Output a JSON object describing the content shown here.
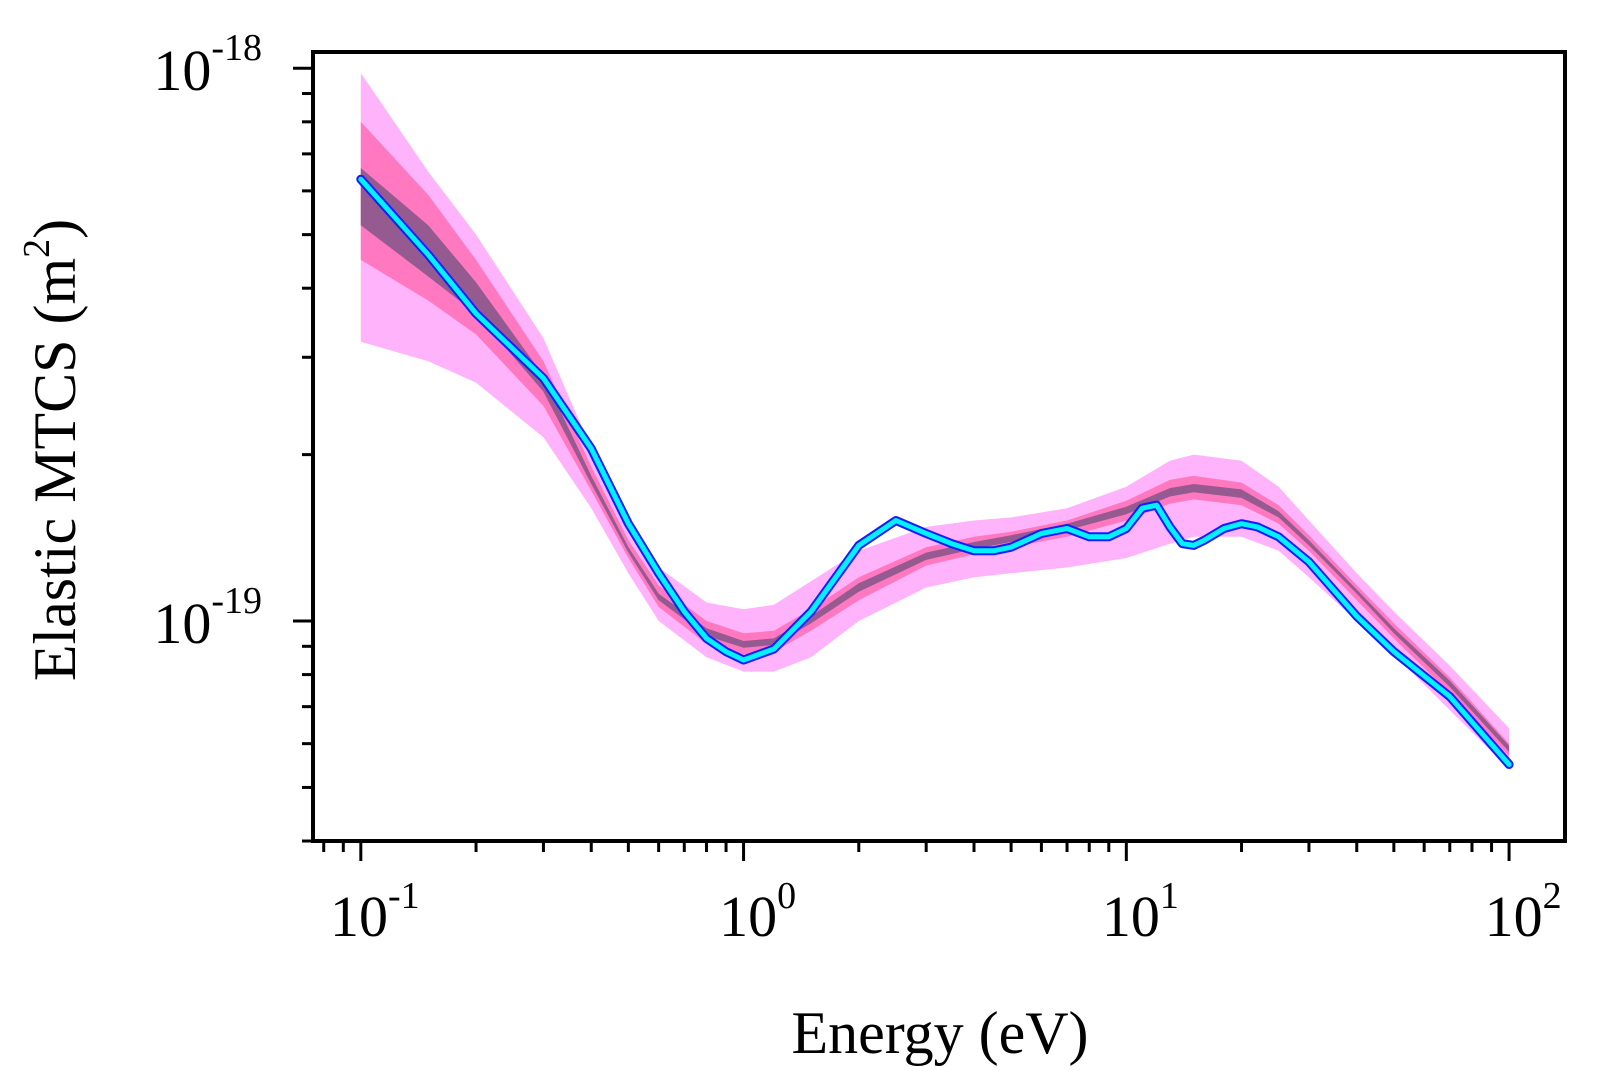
{
  "chart_data": {
    "type": "line",
    "title": "",
    "xlabel": "Energy (eV)",
    "ylabel_main": "Elastic MTCS (m",
    "ylabel_sup": "2",
    "ylabel_close": ")",
    "xscale": "log",
    "yscale": "log",
    "xlim": [
      0.075,
      140
    ],
    "ylim": [
      4e-20,
      1.07e-18
    ],
    "x_major_ticks": [
      {
        "value": 0.1,
        "base": "10",
        "exp": "-1"
      },
      {
        "value": 1,
        "base": "10",
        "exp": "0"
      },
      {
        "value": 10,
        "base": "10",
        "exp": "1"
      },
      {
        "value": 100,
        "base": "10",
        "exp": "2"
      }
    ],
    "y_major_ticks": [
      {
        "value": 1e-19,
        "base": "10",
        "exp": "-19"
      },
      {
        "value": 1e-18,
        "base": "10",
        "exp": "-18"
      }
    ],
    "x_minor_ticks": [
      0.08,
      0.09,
      0.2,
      0.3,
      0.4,
      0.5,
      0.6,
      0.7,
      0.8,
      0.9,
      2,
      3,
      4,
      5,
      6,
      7,
      8,
      9,
      20,
      30,
      40,
      50,
      60,
      70,
      80,
      90
    ],
    "y_minor_ticks": [
      4e-20,
      5e-20,
      6e-20,
      7e-20,
      8e-20,
      9e-20,
      2e-19,
      3e-19,
      4e-19,
      5e-19,
      6e-19,
      7e-19,
      8e-19,
      9e-19
    ],
    "colors": {
      "band_outer": "#ffb3fb",
      "band_middle": "#ff78c0",
      "band_inner": "#955a8f",
      "line_outline": "#1a1aff",
      "line": "#00f2ff"
    },
    "band_x": [
      0.1,
      0.15,
      0.2,
      0.3,
      0.4,
      0.5,
      0.6,
      0.8,
      1.0,
      1.2,
      1.5,
      2,
      3,
      4,
      5,
      7,
      10,
      13,
      15,
      20,
      25,
      30,
      40,
      50,
      70,
      100
    ],
    "band_outer": {
      "upper": [
        9.8e-19,
        6.5e-19,
        5e-19,
        3.25e-19,
        2.05e-19,
        1.5e-19,
        1.25e-19,
        1.08e-19,
        1.05e-19,
        1.07e-19,
        1.18e-19,
        1.34e-19,
        1.48e-19,
        1.52e-19,
        1.54e-19,
        1.6e-19,
        1.75e-19,
        1.95e-19,
        2e-19,
        1.95e-19,
        1.75e-19,
        1.52e-19,
        1.22e-19,
        1.04e-19,
        8.3e-20,
        6.4e-20
      ],
      "lower": [
        3.2e-19,
        2.95e-19,
        2.7e-19,
        2.15e-19,
        1.6e-19,
        1.22e-19,
        1e-19,
        8.6e-20,
        8.1e-20,
        8.1e-20,
        8.6e-20,
        1e-19,
        1.15e-19,
        1.2e-19,
        1.22e-19,
        1.25e-19,
        1.3e-19,
        1.38e-19,
        1.42e-19,
        1.42e-19,
        1.34e-19,
        1.2e-19,
        1e-19,
        8.7e-20,
        6.9e-20,
        5.4e-20
      ]
    },
    "band_middle": {
      "upper": [
        8e-19,
        5.9e-19,
        4.5e-19,
        2.95e-19,
        1.9e-19,
        1.4e-19,
        1.16e-19,
        1e-19,
        9.5e-20,
        9.6e-20,
        1.05e-19,
        1.2e-19,
        1.36e-19,
        1.42e-19,
        1.45e-19,
        1.52e-19,
        1.65e-19,
        1.8e-19,
        1.83e-19,
        1.78e-19,
        1.62e-19,
        1.43e-19,
        1.16e-19,
        9.9e-20,
        7.9e-20,
        6e-20
      ],
      "lower": [
        4.5e-19,
        3.8e-19,
        3.3e-19,
        2.45e-19,
        1.72e-19,
        1.3e-19,
        1.06e-19,
        9.1e-20,
        8.7e-20,
        8.8e-20,
        9.6e-20,
        1.09e-19,
        1.26e-19,
        1.32e-19,
        1.36e-19,
        1.42e-19,
        1.52e-19,
        1.63e-19,
        1.66e-19,
        1.62e-19,
        1.5e-19,
        1.34e-19,
        1.09e-19,
        9.3e-20,
        7.4e-20,
        5.7e-20
      ]
    },
    "band_inner": {
      "upper": [
        6.6e-19,
        5.2e-19,
        4.1e-19,
        2.78e-19,
        1.83e-19,
        1.36e-19,
        1.12e-19,
        9.7e-20,
        9.2e-20,
        9.3e-20,
        1.02e-19,
        1.17e-19,
        1.33e-19,
        1.39e-19,
        1.43e-19,
        1.5e-19,
        1.61e-19,
        1.74e-19,
        1.77e-19,
        1.73e-19,
        1.58e-19,
        1.4e-19,
        1.14e-19,
        9.7e-20,
        7.8e-20,
        5.95e-20
      ],
      "lower": [
        5.2e-19,
        4.2e-19,
        3.6e-19,
        2.6e-19,
        1.77e-19,
        1.33e-19,
        1.09e-19,
        9.4e-20,
        8.95e-20,
        9.05e-20,
        9.9e-20,
        1.13e-19,
        1.29e-19,
        1.35e-19,
        1.39e-19,
        1.46e-19,
        1.56e-19,
        1.68e-19,
        1.71e-19,
        1.67e-19,
        1.54e-19,
        1.37e-19,
        1.12e-19,
        9.5e-20,
        7.6e-20,
        5.8e-20
      ]
    },
    "series": [
      {
        "name": "MTCS",
        "x": [
          0.1,
          0.15,
          0.2,
          0.3,
          0.4,
          0.5,
          0.6,
          0.7,
          0.8,
          0.9,
          1.0,
          1.2,
          1.5,
          2.0,
          2.5,
          3.0,
          3.5,
          4.0,
          4.5,
          5.0,
          6.0,
          7.0,
          8.0,
          9.0,
          10,
          11,
          12,
          13,
          14,
          15,
          16,
          18,
          20,
          22,
          25,
          30,
          40,
          50,
          70,
          100
        ],
        "values": [
          6.3e-19,
          4.6e-19,
          3.6e-19,
          2.75e-19,
          2.05e-19,
          1.5e-19,
          1.22e-19,
          1.04e-19,
          9.3e-20,
          8.8e-20,
          8.5e-20,
          8.9e-20,
          1.04e-19,
          1.37e-19,
          1.52e-19,
          1.44e-19,
          1.38e-19,
          1.34e-19,
          1.34e-19,
          1.36e-19,
          1.44e-19,
          1.47e-19,
          1.42e-19,
          1.42e-19,
          1.47e-19,
          1.6e-19,
          1.62e-19,
          1.48e-19,
          1.38e-19,
          1.37e-19,
          1.4e-19,
          1.47e-19,
          1.5e-19,
          1.48e-19,
          1.42e-19,
          1.28e-19,
          1.02e-19,
          8.8e-20,
          7.3e-20,
          5.5e-20
        ]
      }
    ],
    "legend": "none",
    "grid": false
  }
}
